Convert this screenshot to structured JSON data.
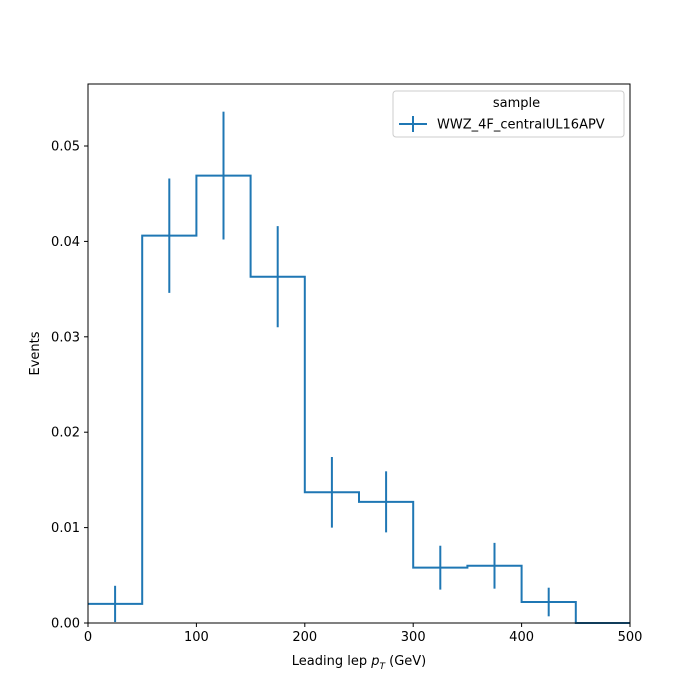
{
  "chart_data": {
    "type": "line",
    "xlabel_main": "Leading lep ",
    "xlabel_var": "p",
    "xlabel_sub": "T",
    "xlabel_unit": " (GeV)",
    "ylabel": "Events",
    "xlim": [
      0,
      500
    ],
    "ylim": [
      0,
      0.0565
    ],
    "x_ticks": [
      0,
      100,
      200,
      300,
      400,
      500
    ],
    "x_tick_labels": [
      "0",
      "100",
      "200",
      "300",
      "400",
      "500"
    ],
    "y_ticks": [
      0,
      0.01,
      0.02,
      0.03,
      0.04,
      0.05
    ],
    "y_tick_labels": [
      "0.00",
      "0.01",
      "0.02",
      "0.03",
      "0.04",
      "0.05"
    ],
    "grid": false,
    "legend": {
      "title": "sample",
      "position": "top-right",
      "entries": [
        "WWZ_4F_centralUL16APV"
      ]
    },
    "series": [
      {
        "name": "WWZ_4F_centralUL16APV",
        "color": "#1f77b4",
        "bin_edges": [
          0,
          50,
          100,
          150,
          200,
          250,
          300,
          350,
          400,
          450,
          500
        ],
        "values": [
          0.002,
          0.0406,
          0.0469,
          0.0363,
          0.0137,
          0.0127,
          0.0058,
          0.006,
          0.0022,
          0.0
        ],
        "errors": [
          0.0019,
          0.006,
          0.0067,
          0.0053,
          0.0037,
          0.0032,
          0.0023,
          0.0024,
          0.0015,
          0.0
        ]
      }
    ]
  }
}
